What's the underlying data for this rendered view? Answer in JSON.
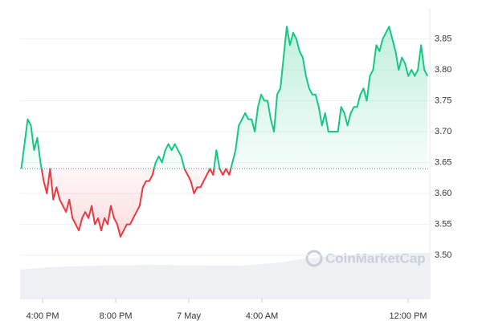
{
  "chart_data": {
    "type": "line",
    "watermark": "CoinMarketCap",
    "baseline": 3.64,
    "up_color": "#16c784",
    "down_color": "#ea3943",
    "xlim": [
      886,
      2231
    ],
    "xticks": [
      {
        "value": 960,
        "label": "4:00 PM"
      },
      {
        "value": 1200,
        "label": "8:00 PM"
      },
      {
        "value": 1440,
        "label": "7 May"
      },
      {
        "value": 1680,
        "label": "4:00 AM"
      },
      {
        "value": 2160,
        "label": "12:00 PM"
      }
    ],
    "ylim": [
      3.43,
      3.9
    ],
    "yticks": [
      {
        "value": 3.5,
        "label": "3.50"
      },
      3.55,
      {
        "value": 3.6,
        "label": "3.60"
      },
      3.65,
      {
        "value": 3.7,
        "label": "3.70"
      },
      3.75,
      {
        "value": 3.8,
        "label": "3.80"
      },
      3.85
    ],
    "grid": true,
    "x": [
      890,
      900.5,
      911,
      921.5,
      932,
      942.5,
      953,
      963.5,
      974,
      984.5,
      995,
      1005.5,
      1016,
      1026.5,
      1037,
      1047.5,
      1058,
      1068.5,
      1079,
      1089.5,
      1100,
      1110.5,
      1121,
      1131.5,
      1142,
      1152.5,
      1163,
      1173.5,
      1184,
      1194.5,
      1205,
      1215.5,
      1226,
      1236.5,
      1247,
      1257.5,
      1268,
      1278.5,
      1289,
      1299.5,
      1310,
      1320.5,
      1331,
      1341.5,
      1352,
      1362.5,
      1373,
      1383.5,
      1394,
      1404.5,
      1415,
      1425.5,
      1436,
      1446.5,
      1457,
      1467.5,
      1478,
      1488.5,
      1499,
      1509.5,
      1520,
      1530.5,
      1541,
      1551.5,
      1562,
      1572.5,
      1583,
      1593.5,
      1604,
      1614.5,
      1625,
      1635.5,
      1646,
      1656.5,
      1667,
      1677.5,
      1688,
      1698.5,
      1709,
      1719.5,
      1730,
      1740.5,
      1751,
      1761.5,
      1772,
      1782.5,
      1793,
      1803.5,
      1814,
      1824.5,
      1835,
      1845.5,
      1856,
      1866.5,
      1877,
      1887.5,
      1898,
      1908.5,
      1919,
      1929.5,
      1940,
      1950.5,
      1961,
      1971.5,
      1982,
      1992.5,
      2003,
      2013.5,
      2024,
      2034.5,
      2045,
      2055.5,
      2066,
      2076.5,
      2087,
      2097.5,
      2108,
      2118.5,
      2129,
      2139.5,
      2150,
      2160.5,
      2171,
      2181.5,
      2192,
      2202.5,
      2213,
      2223.5
    ],
    "values": [
      3.64,
      3.68,
      3.72,
      3.71,
      3.67,
      3.69,
      3.65,
      3.62,
      3.6,
      3.64,
      3.59,
      3.61,
      3.59,
      3.58,
      3.57,
      3.59,
      3.56,
      3.55,
      3.54,
      3.56,
      3.57,
      3.56,
      3.58,
      3.55,
      3.56,
      3.54,
      3.56,
      3.55,
      3.58,
      3.56,
      3.55,
      3.53,
      3.54,
      3.55,
      3.55,
      3.56,
      3.57,
      3.58,
      3.61,
      3.62,
      3.62,
      3.63,
      3.65,
      3.66,
      3.65,
      3.67,
      3.68,
      3.67,
      3.68,
      3.67,
      3.66,
      3.64,
      3.63,
      3.62,
      3.6,
      3.61,
      3.61,
      3.62,
      3.63,
      3.64,
      3.63,
      3.67,
      3.64,
      3.63,
      3.64,
      3.63,
      3.65,
      3.67,
      3.71,
      3.72,
      3.73,
      3.72,
      3.72,
      3.7,
      3.74,
      3.76,
      3.75,
      3.75,
      3.72,
      3.7,
      3.76,
      3.77,
      3.82,
      3.87,
      3.84,
      3.86,
      3.85,
      3.83,
      3.82,
      3.79,
      3.77,
      3.76,
      3.76,
      3.74,
      3.71,
      3.73,
      3.7,
      3.7,
      3.7,
      3.7,
      3.74,
      3.73,
      3.71,
      3.73,
      3.74,
      3.74,
      3.76,
      3.77,
      3.75,
      3.79,
      3.8,
      3.84,
      3.83,
      3.85,
      3.86,
      3.87,
      3.85,
      3.83,
      3.8,
      3.82,
      3.81,
      3.79,
      3.8,
      3.79,
      3.8,
      3.84,
      3.8,
      3.79
    ]
  }
}
